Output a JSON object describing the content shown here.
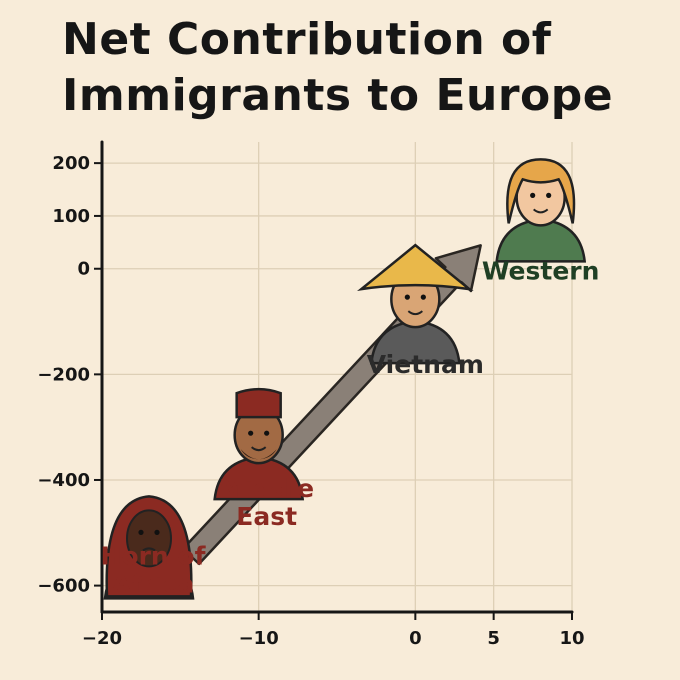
{
  "chart_data": {
    "type": "scatter",
    "title_lines": [
      "Net Contribution of",
      "Immigrants to Europe"
    ],
    "xlabel": "",
    "ylabel": "",
    "xlim": [
      -20,
      10
    ],
    "ylim": [
      -650,
      240
    ],
    "x_ticks": [
      -20,
      -10,
      0,
      5,
      10
    ],
    "x_tick_labels": [
      "−20",
      "−10",
      "0",
      "5",
      "10"
    ],
    "y_ticks": [
      200,
      100,
      0,
      -200,
      -400,
      -600
    ],
    "y_tick_labels": [
      "200",
      "100",
      "0",
      "−200",
      "−400",
      "−600"
    ],
    "grid": true,
    "trend_arrow": true,
    "points": [
      {
        "label_lines": [
          "Horn of",
          "Africa"
        ],
        "x": -17,
        "y": -450,
        "color": "#8b2a22"
      },
      {
        "label_lines": [
          "Middle",
          "East"
        ],
        "x": -10,
        "y": -300,
        "color": "#8b2a22"
      },
      {
        "label_lines": [
          "Vietnam"
        ],
        "x": 0,
        "y": -50,
        "color": "#2b2b2b"
      },
      {
        "label_lines": [
          "Western"
        ],
        "x": 8,
        "y": 120,
        "color": "#1f3f24"
      }
    ]
  }
}
